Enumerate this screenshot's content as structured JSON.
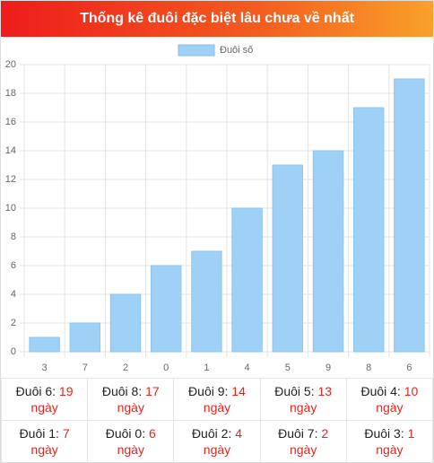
{
  "chart_data": {
    "type": "bar",
    "title": "Thống kê đuôi đặc biệt lâu chưa về nhất",
    "categories": [
      "3",
      "7",
      "2",
      "0",
      "1",
      "4",
      "5",
      "9",
      "8",
      "6"
    ],
    "series": [
      {
        "name": "Đuôi số",
        "color": "#9fd0f5",
        "values": [
          1,
          2,
          4,
          6,
          7,
          10,
          13,
          14,
          17,
          19
        ]
      }
    ],
    "ylim": [
      0,
      20
    ],
    "yticks": [
      0,
      2,
      4,
      6,
      8,
      10,
      12,
      14,
      16,
      18,
      20
    ],
    "grid": true,
    "legend": "top"
  },
  "table": {
    "rows": [
      [
        {
          "label": "Đuôi 6:",
          "value": 19,
          "unit": "ngày"
        },
        {
          "label": "Đuôi 8:",
          "value": 17,
          "unit": "ngày"
        },
        {
          "label": "Đuôi 9:",
          "value": 14,
          "unit": "ngày"
        },
        {
          "label": "Đuôi 5:",
          "value": 13,
          "unit": "ngày"
        },
        {
          "label": "Đuôi 4:",
          "value": 10,
          "unit": "ngày"
        }
      ],
      [
        {
          "label": "Đuôi 1:",
          "value": 7,
          "unit": "ngày"
        },
        {
          "label": "Đuôi 0:",
          "value": 6,
          "unit": "ngày"
        },
        {
          "label": "Đuôi 2:",
          "value": 4,
          "unit": "ngày"
        },
        {
          "label": "Đuôi 7:",
          "value": 2,
          "unit": "ngày"
        },
        {
          "label": "Đuôi 3:",
          "value": 1,
          "unit": "ngày"
        }
      ]
    ]
  }
}
